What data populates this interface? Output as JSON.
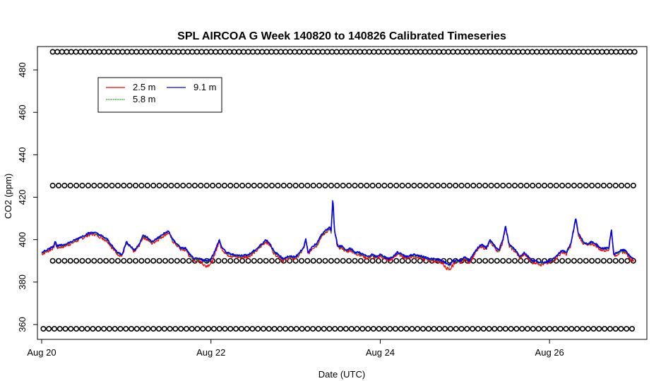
{
  "chart_data": {
    "type": "line",
    "title": "SPL AIRCOA G  Week 140820 to 140826  Calibrated Timeseries",
    "xlabel": "Date (UTC)",
    "ylabel": "CO2 (ppm)",
    "x_ticks": [
      "Aug 20",
      "Aug 22",
      "Aug 24",
      "Aug 26"
    ],
    "x_tick_days": [
      0,
      2,
      4,
      6
    ],
    "xlim_days": [
      -0.05,
      7.15
    ],
    "y_ticks": [
      360,
      380,
      400,
      420,
      440,
      460,
      480
    ],
    "ylim": [
      353,
      491
    ],
    "grid": false,
    "legend_position": "top-left",
    "series": [
      {
        "name": "2.5 m",
        "color": "#ff0000"
      },
      {
        "name": "5.8 m",
        "color": "#00a000",
        "dotted": true
      },
      {
        "name": "9.1 m",
        "color": "#0000ff"
      }
    ],
    "reference_markers": [
      {
        "name": "high standard",
        "value": 488.5,
        "start_day": 0.13,
        "spacing_days": 0.055
      },
      {
        "name": "mid standard",
        "value": 425.5,
        "start_day": 0.13,
        "spacing_days": 0.07
      },
      {
        "name": "low standard",
        "value": 390,
        "start_day": 0.13,
        "spacing_days": 0.07
      },
      {
        "name": "zero standard",
        "value": 358,
        "start_day": 0.02,
        "spacing_days": 0.065
      }
    ],
    "profile_points": [
      [
        0.0,
        394
      ],
      [
        0.05,
        395
      ],
      [
        0.1,
        396
      ],
      [
        0.14,
        397
      ],
      [
        0.16,
        399.5
      ],
      [
        0.18,
        397
      ],
      [
        0.25,
        397.5
      ],
      [
        0.35,
        399
      ],
      [
        0.45,
        401
      ],
      [
        0.55,
        403
      ],
      [
        0.62,
        403.5
      ],
      [
        0.7,
        402
      ],
      [
        0.78,
        400
      ],
      [
        0.85,
        396
      ],
      [
        0.9,
        394
      ],
      [
        0.95,
        393
      ],
      [
        1.0,
        399
      ],
      [
        1.05,
        397
      ],
      [
        1.1,
        395
      ],
      [
        1.15,
        398
      ],
      [
        1.2,
        402
      ],
      [
        1.25,
        401
      ],
      [
        1.3,
        399
      ],
      [
        1.38,
        401
      ],
      [
        1.45,
        403
      ],
      [
        1.5,
        404
      ],
      [
        1.55,
        400
      ],
      [
        1.6,
        398
      ],
      [
        1.65,
        396
      ],
      [
        1.7,
        396
      ],
      [
        1.75,
        393
      ],
      [
        1.8,
        391
      ],
      [
        1.85,
        391
      ],
      [
        1.9,
        390.5
      ],
      [
        1.95,
        390
      ],
      [
        2.0,
        391
      ],
      [
        2.05,
        395
      ],
      [
        2.1,
        400
      ],
      [
        2.12,
        397
      ],
      [
        2.18,
        394
      ],
      [
        2.25,
        393
      ],
      [
        2.35,
        392.5
      ],
      [
        2.45,
        393
      ],
      [
        2.55,
        396
      ],
      [
        2.6,
        398
      ],
      [
        2.65,
        400
      ],
      [
        2.7,
        398
      ],
      [
        2.75,
        394
      ],
      [
        2.8,
        393
      ],
      [
        2.85,
        391
      ],
      [
        2.9,
        392
      ],
      [
        2.95,
        392
      ],
      [
        3.0,
        392
      ],
      [
        3.05,
        394
      ],
      [
        3.1,
        397
      ],
      [
        3.12,
        400
      ],
      [
        3.15,
        394
      ],
      [
        3.2,
        397
      ],
      [
        3.25,
        398
      ],
      [
        3.3,
        402
      ],
      [
        3.35,
        404
      ],
      [
        3.4,
        406
      ],
      [
        3.42,
        404
      ],
      [
        3.44,
        420
      ],
      [
        3.46,
        404
      ],
      [
        3.5,
        397
      ],
      [
        3.55,
        397
      ],
      [
        3.6,
        395
      ],
      [
        3.65,
        396
      ],
      [
        3.7,
        394
      ],
      [
        3.75,
        394
      ],
      [
        3.8,
        393
      ],
      [
        3.85,
        392
      ],
      [
        3.9,
        393
      ],
      [
        3.95,
        392
      ],
      [
        4.0,
        393
      ],
      [
        4.05,
        392
      ],
      [
        4.1,
        391
      ],
      [
        4.15,
        392
      ],
      [
        4.2,
        394
      ],
      [
        4.25,
        393.5
      ],
      [
        4.3,
        392
      ],
      [
        4.4,
        393
      ],
      [
        4.5,
        392
      ],
      [
        4.6,
        391
      ],
      [
        4.7,
        390.5
      ],
      [
        4.78,
        389
      ],
      [
        4.82,
        388
      ],
      [
        4.85,
        390
      ],
      [
        4.9,
        390
      ],
      [
        4.95,
        390
      ],
      [
        5.0,
        392
      ],
      [
        5.05,
        390
      ],
      [
        5.1,
        393
      ],
      [
        5.15,
        396
      ],
      [
        5.2,
        398
      ],
      [
        5.25,
        396
      ],
      [
        5.3,
        400
      ],
      [
        5.35,
        397
      ],
      [
        5.4,
        395
      ],
      [
        5.45,
        400
      ],
      [
        5.48,
        407
      ],
      [
        5.52,
        398
      ],
      [
        5.6,
        395
      ],
      [
        5.65,
        392
      ],
      [
        5.7,
        394
      ],
      [
        5.75,
        392
      ],
      [
        5.8,
        390
      ],
      [
        5.85,
        390
      ],
      [
        5.9,
        389
      ],
      [
        6.0,
        390
      ],
      [
        6.05,
        391
      ],
      [
        6.1,
        393
      ],
      [
        6.15,
        395
      ],
      [
        6.2,
        394
      ],
      [
        6.25,
        398
      ],
      [
        6.28,
        404
      ],
      [
        6.31,
        410
      ],
      [
        6.34,
        403
      ],
      [
        6.4,
        399
      ],
      [
        6.45,
        398
      ],
      [
        6.5,
        399
      ],
      [
        6.55,
        398
      ],
      [
        6.6,
        396
      ],
      [
        6.65,
        396
      ],
      [
        6.7,
        396
      ],
      [
        6.73,
        405
      ],
      [
        6.76,
        393
      ],
      [
        6.8,
        394
      ],
      [
        6.85,
        395
      ],
      [
        6.9,
        395
      ],
      [
        6.95,
        392
      ],
      [
        7.0,
        391
      ]
    ]
  }
}
